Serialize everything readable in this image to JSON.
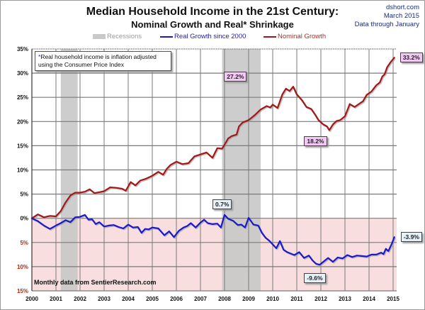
{
  "header": {
    "title": "Median Household Income in the 21st Century:",
    "subtitle": "Nominal  Growth and Real* Shrinkage",
    "source_lines": [
      "dshort.com",
      "March 2015",
      "Data through January"
    ]
  },
  "footnote": {
    "star": "*",
    "text_line1": "Real household  income is inflation adjusted",
    "text_line2": "using  the Consumer Price Index"
  },
  "monthly_note": "Monthly data from SentierResearch.com",
  "colors": {
    "nominal": "#a01818",
    "real": "#1a1acc",
    "recession": "#c8c8c8",
    "negative_zone": "#f8dede",
    "grid": "#7a7a7a",
    "neg_tick": "#cc2200",
    "pos_tick": "#111111"
  },
  "chart_data": {
    "type": "line",
    "title": "Median Household Income in the 21st Century: Nominal Growth and Real* Shrinkage",
    "xlabel": "",
    "ylabel": "",
    "xlim": [
      2000,
      2015.2
    ],
    "ylim": [
      -15,
      35
    ],
    "grid": true,
    "legend_position": "top",
    "legend": [
      {
        "name": "Recessions",
        "kind": "band"
      },
      {
        "name": "Real Growth since 2000",
        "kind": "line"
      },
      {
        "name": "Nominal Growth",
        "kind": "line"
      }
    ],
    "x_ticks": [
      "2000",
      "2001",
      "2002",
      "2003",
      "2004",
      "2005",
      "2006",
      "2007",
      "2008",
      "2009",
      "2010",
      "2011",
      "2012",
      "2013",
      "2014",
      "2015"
    ],
    "y_ticks": [
      {
        "value": 35,
        "label": "35%"
      },
      {
        "value": 30,
        "label": "30%"
      },
      {
        "value": 25,
        "label": "25%"
      },
      {
        "value": 20,
        "label": "20%"
      },
      {
        "value": 15,
        "label": "15%"
      },
      {
        "value": 10,
        "label": "10%"
      },
      {
        "value": 5,
        "label": "5%"
      },
      {
        "value": 0,
        "label": "0%"
      },
      {
        "value": -5,
        "label": "5%"
      },
      {
        "value": -10,
        "label": "10%"
      },
      {
        "value": -15,
        "label": "15%"
      }
    ],
    "recessions": [
      {
        "start": 2001.2,
        "end": 2001.9
      },
      {
        "start": 2007.9,
        "end": 2009.5
      }
    ],
    "series": [
      {
        "name": "Nominal Growth",
        "x": [
          2000.0,
          2000.25,
          2000.5,
          2000.75,
          2001.0,
          2001.2,
          2001.4,
          2001.6,
          2001.8,
          2002.0,
          2002.2,
          2002.4,
          2002.6,
          2002.8,
          2003.0,
          2003.25,
          2003.5,
          2003.75,
          2003.9,
          2004.1,
          2004.3,
          2004.5,
          2004.75,
          2005.0,
          2005.25,
          2005.45,
          2005.6,
          2005.75,
          2006.0,
          2006.25,
          2006.5,
          2006.75,
          2007.0,
          2007.25,
          2007.5,
          2007.7,
          2007.9,
          2008.0,
          2008.15,
          2008.3,
          2008.5,
          2008.6,
          2008.75,
          2009.0,
          2009.25,
          2009.5,
          2009.75,
          2009.9,
          2010.0,
          2010.2,
          2010.4,
          2010.55,
          2010.7,
          2010.85,
          2011.0,
          2011.2,
          2011.4,
          2011.6,
          2011.75,
          2011.9,
          2012.1,
          2012.25,
          2012.35,
          2012.5,
          2012.65,
          2012.8,
          2013.0,
          2013.2,
          2013.4,
          2013.6,
          2013.75,
          2013.9,
          2014.1,
          2014.3,
          2014.45,
          2014.55,
          2014.65,
          2014.75,
          2014.9,
          2015.05
        ],
        "values": [
          0.0,
          0.8,
          0.2,
          0.5,
          0.4,
          1.5,
          3.3,
          4.7,
          5.3,
          5.3,
          5.5,
          6.0,
          5.2,
          5.4,
          5.6,
          6.4,
          6.3,
          6.1,
          5.7,
          7.5,
          6.8,
          7.8,
          8.2,
          8.8,
          9.6,
          9.0,
          10.2,
          11.0,
          11.7,
          11.2,
          11.4,
          12.8,
          13.2,
          13.6,
          12.5,
          14.5,
          14.4,
          15.2,
          16.5,
          17.0,
          17.3,
          19.0,
          19.8,
          20.3,
          21.3,
          22.5,
          23.2,
          22.9,
          23.5,
          22.8,
          25.6,
          26.8,
          26.3,
          27.2,
          25.6,
          24.5,
          23.0,
          22.6,
          21.5,
          20.3,
          19.4,
          19.0,
          18.2,
          19.4,
          20.1,
          20.3,
          21.1,
          23.6,
          23.0,
          23.7,
          24.2,
          25.5,
          26.2,
          27.5,
          28.1,
          29.3,
          29.8,
          31.2,
          32.3,
          33.2
        ]
      },
      {
        "name": "Real Growth since 2000",
        "x": [
          2000.0,
          2000.25,
          2000.5,
          2000.75,
          2001.0,
          2001.2,
          2001.4,
          2001.6,
          2001.8,
          2002.0,
          2002.2,
          2002.35,
          2002.5,
          2002.65,
          2002.8,
          2003.0,
          2003.2,
          2003.4,
          2003.6,
          2003.8,
          2004.0,
          2004.2,
          2004.4,
          2004.55,
          2004.7,
          2004.85,
          2005.0,
          2005.25,
          2005.5,
          2005.7,
          2005.9,
          2006.1,
          2006.3,
          2006.45,
          2006.6,
          2006.8,
          2007.0,
          2007.15,
          2007.3,
          2007.5,
          2007.7,
          2007.85,
          2008.0,
          2008.15,
          2008.35,
          2008.55,
          2008.7,
          2008.85,
          2009.0,
          2009.2,
          2009.4,
          2009.55,
          2009.7,
          2009.85,
          2010.0,
          2010.15,
          2010.3,
          2010.45,
          2010.6,
          2010.75,
          2010.9,
          2011.1,
          2011.3,
          2011.5,
          2011.65,
          2011.8,
          2011.95,
          2012.1,
          2012.3,
          2012.5,
          2012.7,
          2012.9,
          2013.1,
          2013.3,
          2013.5,
          2013.7,
          2013.9,
          2014.1,
          2014.3,
          2014.5,
          2014.6,
          2014.7,
          2014.8,
          2014.95,
          2015.05
        ],
        "values": [
          0.0,
          -0.6,
          -1.5,
          -2.2,
          -1.5,
          -1.0,
          -0.4,
          -0.8,
          0.2,
          0.3,
          0.7,
          -0.3,
          -0.2,
          -1.2,
          -0.8,
          -1.7,
          -1.5,
          -1.4,
          -1.8,
          -2.1,
          -1.3,
          -1.9,
          -1.8,
          -3.0,
          -2.2,
          -2.3,
          -1.9,
          -2.1,
          -3.5,
          -2.7,
          -3.9,
          -2.6,
          -1.9,
          -1.6,
          -1.0,
          -1.9,
          -0.9,
          -0.3,
          -1.0,
          -1.2,
          -1.1,
          -1.9,
          0.7,
          -0.1,
          -0.5,
          -1.4,
          -1.3,
          -1.9,
          0.1,
          -1.3,
          -1.5,
          -3.0,
          -4.0,
          -4.6,
          -5.4,
          -6.2,
          -4.7,
          -6.5,
          -7.0,
          -7.3,
          -7.6,
          -7.0,
          -8.2,
          -7.7,
          -8.7,
          -9.4,
          -9.6,
          -9.0,
          -8.2,
          -9.0,
          -8.1,
          -8.3,
          -7.6,
          -8.0,
          -7.7,
          -7.8,
          -7.9,
          -7.5,
          -7.5,
          -7.1,
          -7.4,
          -6.3,
          -6.8,
          -5.2,
          -3.9
        ]
      }
    ],
    "annotations": [
      {
        "text": "27.2%",
        "series": "Nominal Growth",
        "x": 2008.45,
        "y": 27.2
      },
      {
        "text": "18.2%",
        "series": "Nominal Growth",
        "x": 2011.6,
        "y": 18.2
      },
      {
        "text": "33.2%",
        "series": "Nominal Growth",
        "x": 2015.05,
        "y": 33.2
      },
      {
        "text": "0.7%",
        "series": "Real Growth since 2000",
        "x": 2008.0,
        "y": 0.7
      },
      {
        "text": "-9.6%",
        "series": "Real Growth since 2000",
        "x": 2011.95,
        "y": -9.6
      },
      {
        "text": "-3.9%",
        "series": "Real Growth since 2000",
        "x": 2015.05,
        "y": -3.9
      }
    ]
  }
}
